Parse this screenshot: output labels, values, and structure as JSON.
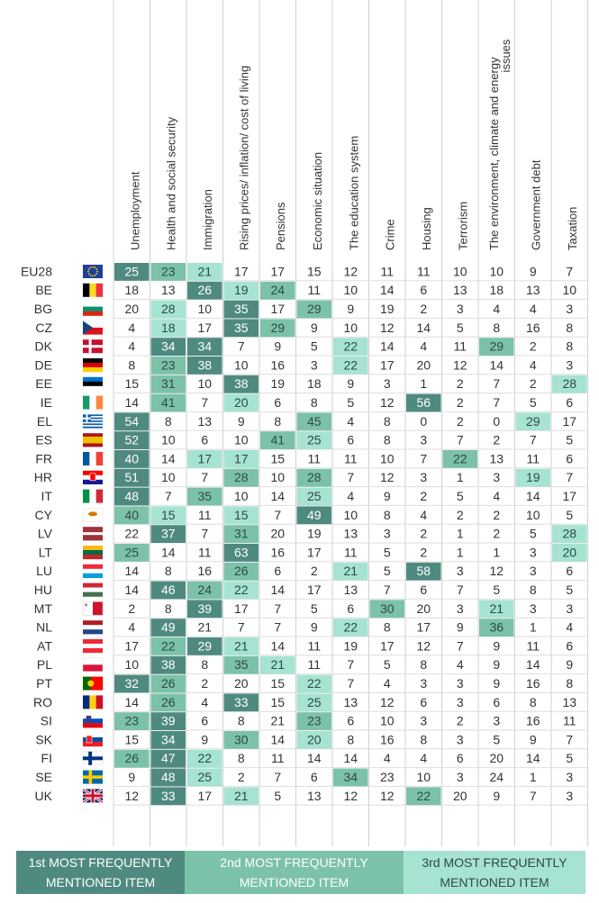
{
  "chart_data": {
    "type": "table",
    "columns": [
      [
        "Unemployment"
      ],
      [
        "Health and social security"
      ],
      [
        "Immigration"
      ],
      [
        "Rising prices/ inflation/ cost of living"
      ],
      [
        "Pensions"
      ],
      [
        "Economic situation"
      ],
      [
        "The education system"
      ],
      [
        "Crime"
      ],
      [
        "Housing"
      ],
      [
        "Terrorism"
      ],
      [
        "The environment, climate and energy",
        "issues"
      ],
      [
        "Government debt"
      ],
      [
        "Taxation"
      ]
    ],
    "rows": [
      {
        "country": "EU28",
        "values": [
          25,
          23,
          21,
          17,
          17,
          15,
          12,
          11,
          11,
          10,
          10,
          9,
          7
        ],
        "rank": [
          1,
          2,
          3,
          0,
          0,
          0,
          0,
          0,
          0,
          0,
          0,
          0,
          0
        ]
      },
      {
        "country": "BE",
        "values": [
          18,
          13,
          26,
          19,
          24,
          11,
          10,
          14,
          6,
          13,
          18,
          13,
          10
        ],
        "rank": [
          0,
          0,
          1,
          3,
          2,
          0,
          0,
          0,
          0,
          0,
          0,
          0,
          0
        ]
      },
      {
        "country": "BG",
        "values": [
          20,
          28,
          10,
          35,
          17,
          29,
          9,
          19,
          2,
          3,
          4,
          4,
          3
        ],
        "rank": [
          0,
          3,
          0,
          1,
          0,
          2,
          0,
          0,
          0,
          0,
          0,
          0,
          0
        ]
      },
      {
        "country": "CZ",
        "values": [
          4,
          18,
          17,
          35,
          29,
          9,
          10,
          12,
          14,
          5,
          8,
          16,
          8
        ],
        "rank": [
          0,
          3,
          0,
          1,
          2,
          0,
          0,
          0,
          0,
          0,
          0,
          0,
          0
        ]
      },
      {
        "country": "DK",
        "values": [
          4,
          34,
          34,
          7,
          9,
          5,
          22,
          14,
          4,
          11,
          29,
          2,
          8
        ],
        "rank": [
          0,
          1,
          1,
          0,
          0,
          0,
          3,
          0,
          0,
          0,
          2,
          0,
          0
        ]
      },
      {
        "country": "DE",
        "values": [
          8,
          23,
          38,
          10,
          16,
          3,
          22,
          17,
          20,
          12,
          14,
          4,
          3
        ],
        "rank": [
          0,
          2,
          1,
          0,
          0,
          0,
          3,
          0,
          0,
          0,
          0,
          0,
          0
        ]
      },
      {
        "country": "EE",
        "values": [
          15,
          31,
          10,
          38,
          19,
          18,
          9,
          3,
          1,
          2,
          7,
          2,
          28
        ],
        "rank": [
          0,
          2,
          0,
          1,
          0,
          0,
          0,
          0,
          0,
          0,
          0,
          0,
          3
        ]
      },
      {
        "country": "IE",
        "values": [
          14,
          41,
          7,
          20,
          6,
          8,
          5,
          12,
          56,
          2,
          7,
          5,
          6
        ],
        "rank": [
          0,
          2,
          0,
          3,
          0,
          0,
          0,
          0,
          1,
          0,
          0,
          0,
          0
        ]
      },
      {
        "country": "EL",
        "values": [
          54,
          8,
          13,
          9,
          8,
          45,
          4,
          8,
          0,
          2,
          0,
          29,
          17
        ],
        "rank": [
          1,
          0,
          0,
          0,
          0,
          2,
          0,
          0,
          0,
          0,
          0,
          3,
          0
        ]
      },
      {
        "country": "ES",
        "values": [
          52,
          10,
          6,
          10,
          41,
          25,
          6,
          8,
          3,
          7,
          2,
          7,
          5
        ],
        "rank": [
          1,
          0,
          0,
          0,
          2,
          3,
          0,
          0,
          0,
          0,
          0,
          0,
          0
        ]
      },
      {
        "country": "FR",
        "values": [
          40,
          14,
          17,
          17,
          15,
          11,
          11,
          10,
          7,
          22,
          13,
          11,
          6
        ],
        "rank": [
          1,
          0,
          3,
          3,
          0,
          0,
          0,
          0,
          0,
          2,
          0,
          0,
          0
        ]
      },
      {
        "country": "HR",
        "values": [
          51,
          10,
          7,
          28,
          10,
          28,
          7,
          12,
          3,
          1,
          3,
          19,
          7
        ],
        "rank": [
          1,
          0,
          0,
          2,
          0,
          2,
          0,
          0,
          0,
          0,
          0,
          3,
          0
        ]
      },
      {
        "country": "IT",
        "values": [
          48,
          7,
          35,
          10,
          14,
          25,
          4,
          9,
          2,
          5,
          4,
          14,
          17
        ],
        "rank": [
          1,
          0,
          2,
          0,
          0,
          3,
          0,
          0,
          0,
          0,
          0,
          0,
          0
        ]
      },
      {
        "country": "CY",
        "values": [
          40,
          15,
          11,
          15,
          7,
          49,
          10,
          8,
          4,
          2,
          2,
          10,
          5
        ],
        "rank": [
          2,
          3,
          0,
          3,
          0,
          1,
          0,
          0,
          0,
          0,
          0,
          0,
          0
        ]
      },
      {
        "country": "LV",
        "values": [
          22,
          37,
          7,
          31,
          20,
          19,
          13,
          3,
          2,
          1,
          2,
          5,
          28
        ],
        "rank": [
          0,
          1,
          0,
          2,
          0,
          0,
          0,
          0,
          0,
          0,
          0,
          0,
          3
        ]
      },
      {
        "country": "LT",
        "values": [
          25,
          14,
          11,
          63,
          16,
          17,
          11,
          5,
          2,
          1,
          1,
          3,
          20
        ],
        "rank": [
          2,
          0,
          0,
          1,
          0,
          0,
          0,
          0,
          0,
          0,
          0,
          0,
          3
        ]
      },
      {
        "country": "LU",
        "values": [
          14,
          8,
          16,
          26,
          6,
          2,
          21,
          5,
          58,
          3,
          12,
          3,
          6
        ],
        "rank": [
          0,
          0,
          0,
          2,
          0,
          0,
          3,
          0,
          1,
          0,
          0,
          0,
          0
        ]
      },
      {
        "country": "HU",
        "values": [
          14,
          46,
          24,
          22,
          14,
          17,
          13,
          7,
          6,
          7,
          5,
          8,
          5
        ],
        "rank": [
          0,
          1,
          2,
          3,
          0,
          0,
          0,
          0,
          0,
          0,
          0,
          0,
          0
        ]
      },
      {
        "country": "MT",
        "values": [
          2,
          8,
          39,
          17,
          7,
          5,
          6,
          30,
          20,
          3,
          21,
          3,
          3
        ],
        "rank": [
          0,
          0,
          1,
          0,
          0,
          0,
          0,
          2,
          0,
          0,
          3,
          0,
          0
        ]
      },
      {
        "country": "NL",
        "values": [
          4,
          49,
          21,
          7,
          7,
          9,
          22,
          8,
          17,
          9,
          36,
          1,
          4
        ],
        "rank": [
          0,
          1,
          0,
          0,
          0,
          0,
          3,
          0,
          0,
          0,
          2,
          0,
          0
        ]
      },
      {
        "country": "AT",
        "values": [
          17,
          22,
          29,
          21,
          14,
          11,
          19,
          17,
          12,
          7,
          9,
          11,
          6
        ],
        "rank": [
          0,
          2,
          1,
          3,
          0,
          0,
          0,
          0,
          0,
          0,
          0,
          0,
          0
        ]
      },
      {
        "country": "PL",
        "values": [
          10,
          38,
          8,
          35,
          21,
          11,
          7,
          5,
          8,
          4,
          9,
          14,
          9
        ],
        "rank": [
          0,
          1,
          0,
          2,
          3,
          0,
          0,
          0,
          0,
          0,
          0,
          0,
          0
        ]
      },
      {
        "country": "PT",
        "values": [
          32,
          26,
          2,
          20,
          15,
          22,
          7,
          4,
          3,
          3,
          9,
          16,
          8
        ],
        "rank": [
          1,
          2,
          0,
          0,
          0,
          3,
          0,
          0,
          0,
          0,
          0,
          0,
          0
        ]
      },
      {
        "country": "RO",
        "values": [
          14,
          26,
          4,
          33,
          15,
          25,
          13,
          12,
          6,
          3,
          6,
          8,
          13
        ],
        "rank": [
          0,
          2,
          0,
          1,
          0,
          3,
          0,
          0,
          0,
          0,
          0,
          0,
          0
        ]
      },
      {
        "country": "SI",
        "values": [
          23,
          39,
          6,
          8,
          21,
          23,
          6,
          10,
          3,
          2,
          3,
          16,
          11
        ],
        "rank": [
          2,
          1,
          0,
          0,
          0,
          2,
          0,
          0,
          0,
          0,
          0,
          0,
          0
        ]
      },
      {
        "country": "SK",
        "values": [
          15,
          34,
          9,
          30,
          14,
          20,
          8,
          16,
          8,
          3,
          5,
          9,
          7
        ],
        "rank": [
          0,
          1,
          0,
          2,
          0,
          3,
          0,
          0,
          0,
          0,
          0,
          0,
          0
        ]
      },
      {
        "country": "FI",
        "values": [
          26,
          47,
          22,
          8,
          11,
          14,
          14,
          4,
          4,
          6,
          20,
          14,
          5
        ],
        "rank": [
          2,
          1,
          3,
          0,
          0,
          0,
          0,
          0,
          0,
          0,
          0,
          0,
          0
        ]
      },
      {
        "country": "SE",
        "values": [
          9,
          48,
          25,
          2,
          7,
          6,
          34,
          23,
          10,
          3,
          24,
          1,
          3
        ],
        "rank": [
          0,
          1,
          3,
          0,
          0,
          0,
          2,
          0,
          0,
          0,
          0,
          0,
          0
        ]
      },
      {
        "country": "UK",
        "values": [
          12,
          33,
          17,
          21,
          5,
          13,
          12,
          12,
          22,
          20,
          9,
          7,
          3
        ],
        "rank": [
          0,
          1,
          0,
          3,
          0,
          0,
          0,
          0,
          2,
          0,
          0,
          0,
          0
        ]
      }
    ],
    "legend": [
      {
        "line1": "1st MOST FREQUENTLY",
        "line2": "MENTIONED ITEM",
        "color": "#4f8a80"
      },
      {
        "line1": "2nd MOST FREQUENTLY",
        "line2": "MENTIONED ITEM",
        "color": "#7cc2a8"
      },
      {
        "line1": "3rd MOST FREQUENTLY",
        "line2": "MENTIONED ITEM",
        "color": "#a6e3d2"
      }
    ],
    "rank_colors": {
      "1": "#4f8a80",
      "2": "#7cc2a8",
      "3": "#a6e3d2"
    },
    "rank_text_colors": {
      "1": "#ffffff",
      "2": "#2d4a44",
      "3": "#2d4a44"
    },
    "flags": {
      "EU28": "eu-flag",
      "BE": "belgium-flag",
      "BG": "bulgaria-flag",
      "CZ": "czech-flag",
      "DK": "denmark-flag",
      "DE": "germany-flag",
      "EE": "estonia-flag",
      "IE": "ireland-flag",
      "EL": "greece-flag",
      "ES": "spain-flag",
      "FR": "france-flag",
      "HR": "croatia-flag",
      "IT": "italy-flag",
      "CY": "cyprus-flag",
      "LV": "latvia-flag",
      "LT": "lithuania-flag",
      "LU": "luxembourg-flag",
      "HU": "hungary-flag",
      "MT": "malta-flag",
      "NL": "netherlands-flag",
      "AT": "austria-flag",
      "PL": "poland-flag",
      "PT": "portugal-flag",
      "RO": "romania-flag",
      "SI": "slovenia-flag",
      "SK": "slovakia-flag",
      "FI": "finland-flag",
      "SE": "sweden-flag",
      "UK": "uk-flag"
    }
  }
}
